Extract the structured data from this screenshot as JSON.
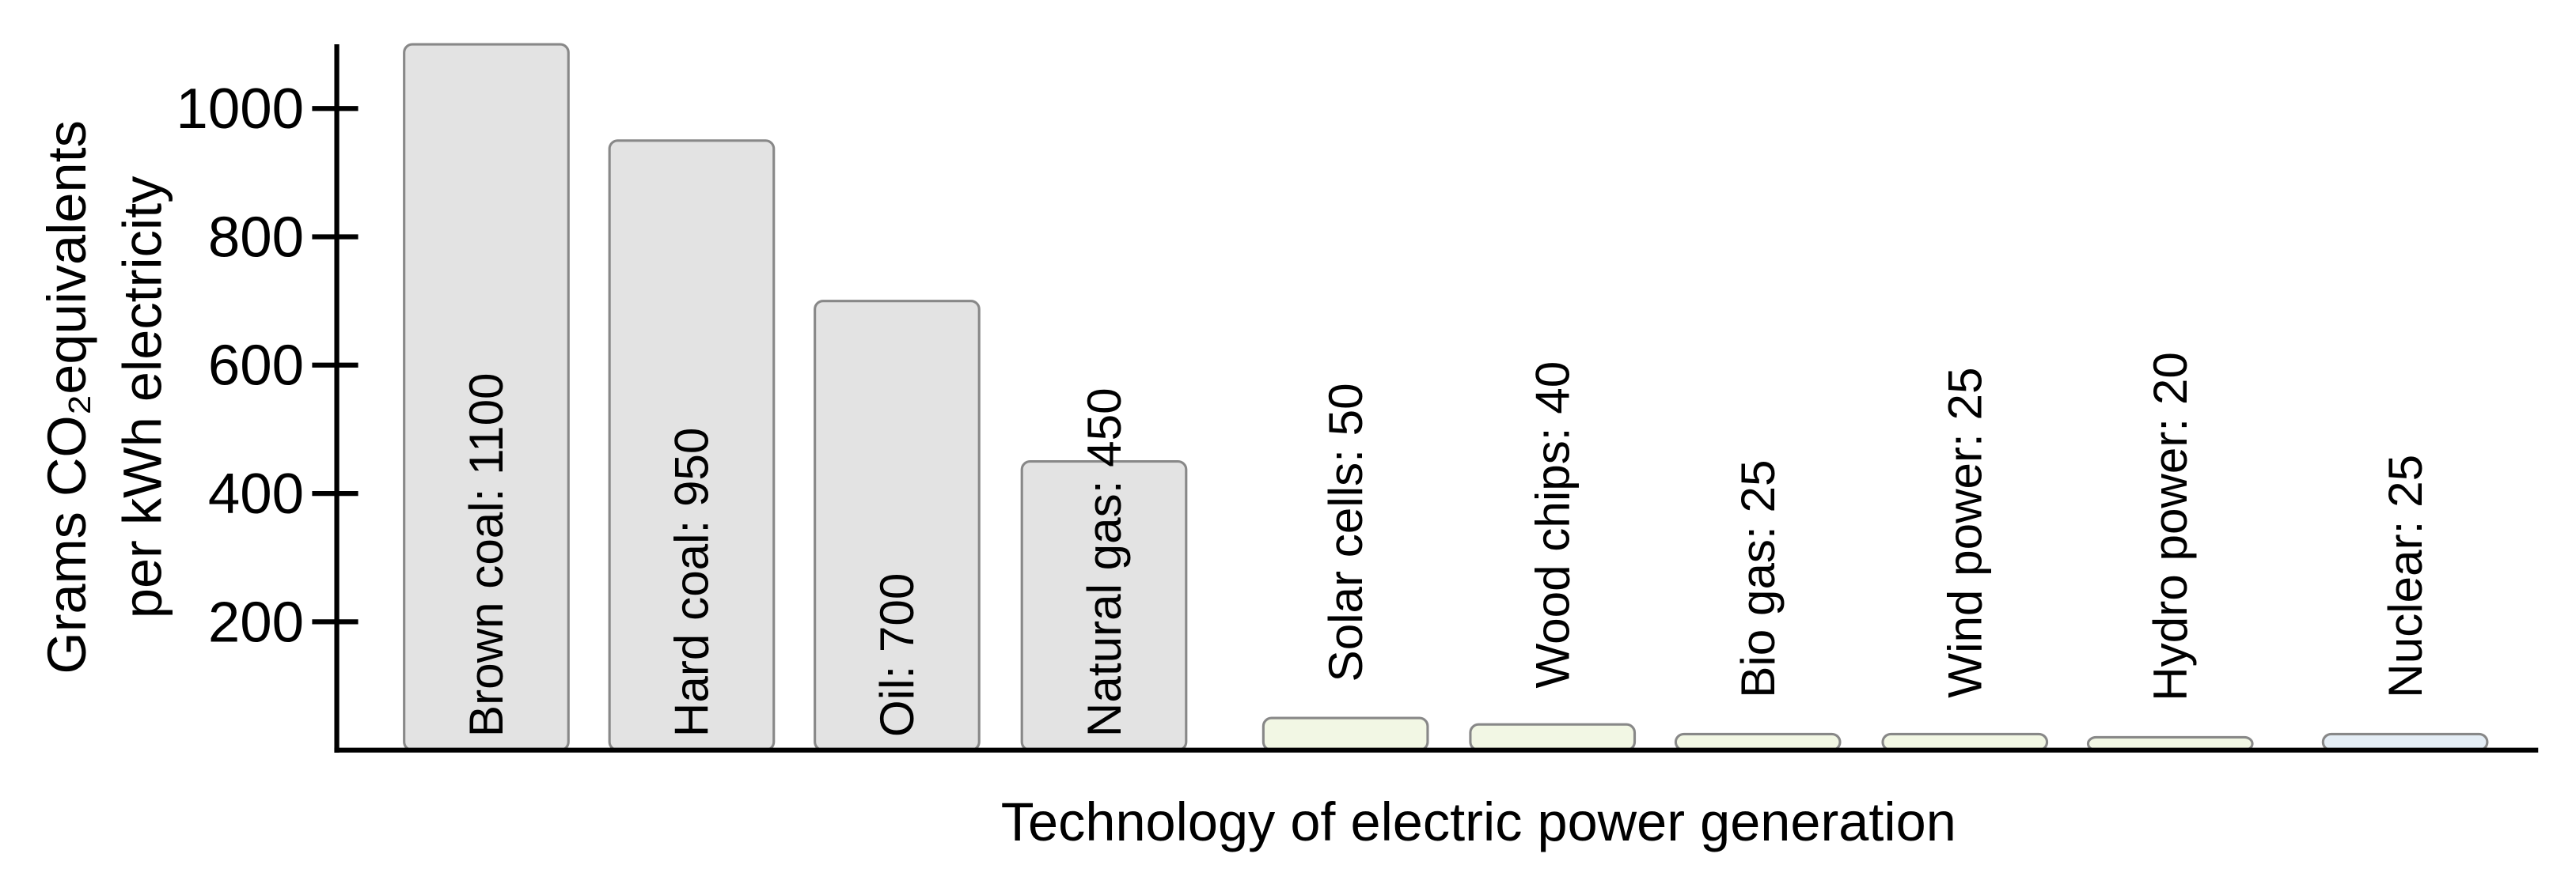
{
  "chart_data": {
    "type": "bar",
    "xlabel": "Technology of electric power generation",
    "ylabel": [
      "Grams CO₂equivalents",
      "per kWh electricity"
    ],
    "values": [
      1100,
      950,
      700,
      450,
      50,
      40,
      25,
      25,
      20,
      25
    ],
    "value_labels": [
      "Brown coal: 1100",
      "Hard coal: 950",
      "Oil: 700",
      "Natural gas: 450",
      "Solar cells: 50",
      "Wood chips: 40",
      "Bio gas: 25",
      "Wind power: 25",
      "Hydro power: 20",
      "Nuclear: 25"
    ],
    "colors": [
      "#e3e3e3",
      "#e3e3e3",
      "#e3e3e3",
      "#e3e3e3",
      "#f2f7e4",
      "#f2f7e4",
      "#f2f7e4",
      "#f2f7e4",
      "#f2f7e4",
      "#e4edf5"
    ],
    "ylim": [
      0,
      1100
    ],
    "yticks": [
      200,
      400,
      600,
      800,
      1000
    ],
    "grid": false
  }
}
